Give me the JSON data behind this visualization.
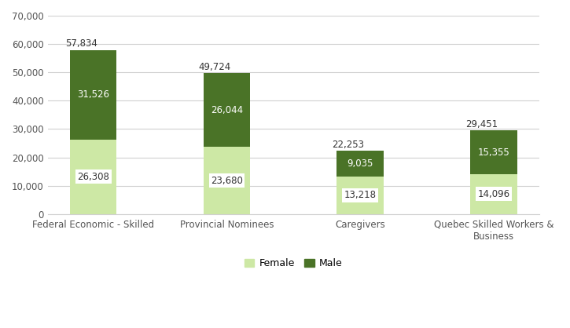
{
  "categories": [
    "Federal Economic - Skilled",
    "Provincial Nominees",
    "Caregivers",
    "Quebec Skilled Workers &\nBusiness"
  ],
  "female_values": [
    26308,
    23680,
    13218,
    14096
  ],
  "male_values": [
    31526,
    26044,
    9035,
    15355
  ],
  "totals": [
    57834,
    49724,
    22253,
    29451
  ],
  "female_color": "#cde8a5",
  "male_color": "#4a7327",
  "female_label": "Female",
  "male_label": "Male",
  "ylim": [
    0,
    70000
  ],
  "yticks": [
    0,
    10000,
    20000,
    30000,
    40000,
    50000,
    60000,
    70000
  ],
  "background_color": "#ffffff",
  "grid_color": "#d0d0d0",
  "bar_width": 0.35,
  "tick_fontsize": 8.5,
  "legend_fontsize": 9,
  "annotation_fontsize": 8.5,
  "total_fontsize": 8.5
}
